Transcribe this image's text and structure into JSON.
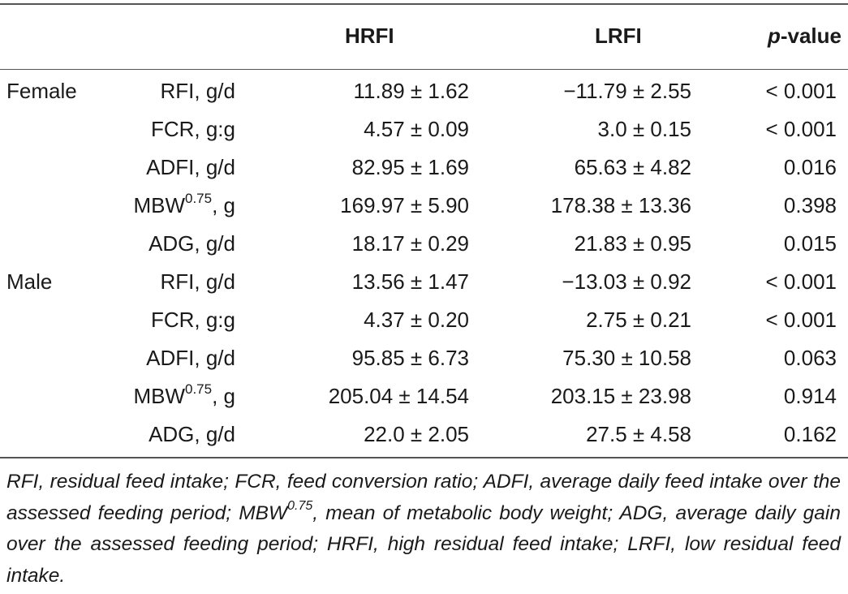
{
  "header": {
    "hrfi": "HRFI",
    "lrfi": "LRFI",
    "p_italic": "p",
    "p_rest": "-value"
  },
  "rows": [
    {
      "group": "Female",
      "metric": "RFI, g/d",
      "metric_sup": "",
      "metric_tail": "",
      "hrfi": "11.89 ± 1.62",
      "lrfi": "−11.79 ± 2.55",
      "p": "< 0.001"
    },
    {
      "group": "",
      "metric": "FCR, g:g",
      "metric_sup": "",
      "metric_tail": "",
      "hrfi": "4.57 ± 0.09",
      "lrfi": "3.0 ± 0.15",
      "p": "< 0.001"
    },
    {
      "group": "",
      "metric": "ADFI, g/d",
      "metric_sup": "",
      "metric_tail": "",
      "hrfi": "82.95 ± 1.69",
      "lrfi": "65.63 ± 4.82",
      "p": "0.016"
    },
    {
      "group": "",
      "metric": "MBW",
      "metric_sup": "0.75",
      "metric_tail": ", g",
      "hrfi": "169.97 ± 5.90",
      "lrfi": "178.38 ± 13.36",
      "p": "0.398"
    },
    {
      "group": "",
      "metric": "ADG, g/d",
      "metric_sup": "",
      "metric_tail": "",
      "hrfi": "18.17 ± 0.29",
      "lrfi": "21.83 ± 0.95",
      "p": "0.015"
    },
    {
      "group": "Male",
      "metric": "RFI, g/d",
      "metric_sup": "",
      "metric_tail": "",
      "hrfi": "13.56 ± 1.47",
      "lrfi": "−13.03 ± 0.92",
      "p": "< 0.001"
    },
    {
      "group": "",
      "metric": "FCR, g:g",
      "metric_sup": "",
      "metric_tail": "",
      "hrfi": "4.37 ± 0.20",
      "lrfi": "2.75 ± 0.21",
      "p": "< 0.001"
    },
    {
      "group": "",
      "metric": "ADFI, g/d",
      "metric_sup": "",
      "metric_tail": "",
      "hrfi": "95.85 ± 6.73",
      "lrfi": "75.30 ± 10.58",
      "p": "0.063"
    },
    {
      "group": "",
      "metric": "MBW",
      "metric_sup": "0.75",
      "metric_tail": ", g",
      "hrfi": "205.04 ± 14.54",
      "lrfi": "203.15 ± 23.98",
      "p": "0.914"
    },
    {
      "group": "",
      "metric": "ADG, g/d",
      "metric_sup": "",
      "metric_tail": "",
      "hrfi": "22.0 ± 2.05",
      "lrfi": "27.5 ± 4.58",
      "p": "0.162"
    }
  ],
  "footnote": {
    "part1": "RFI, residual feed intake; FCR, feed conversion ratio; ADFI, average daily feed intake over the assessed feeding period; MBW",
    "sup": "0.75",
    "part2": ", mean of metabolic body weight; ADG, average daily gain over the assessed feeding period; HRFI, high residual feed intake; LRFI, low residual feed intake."
  }
}
